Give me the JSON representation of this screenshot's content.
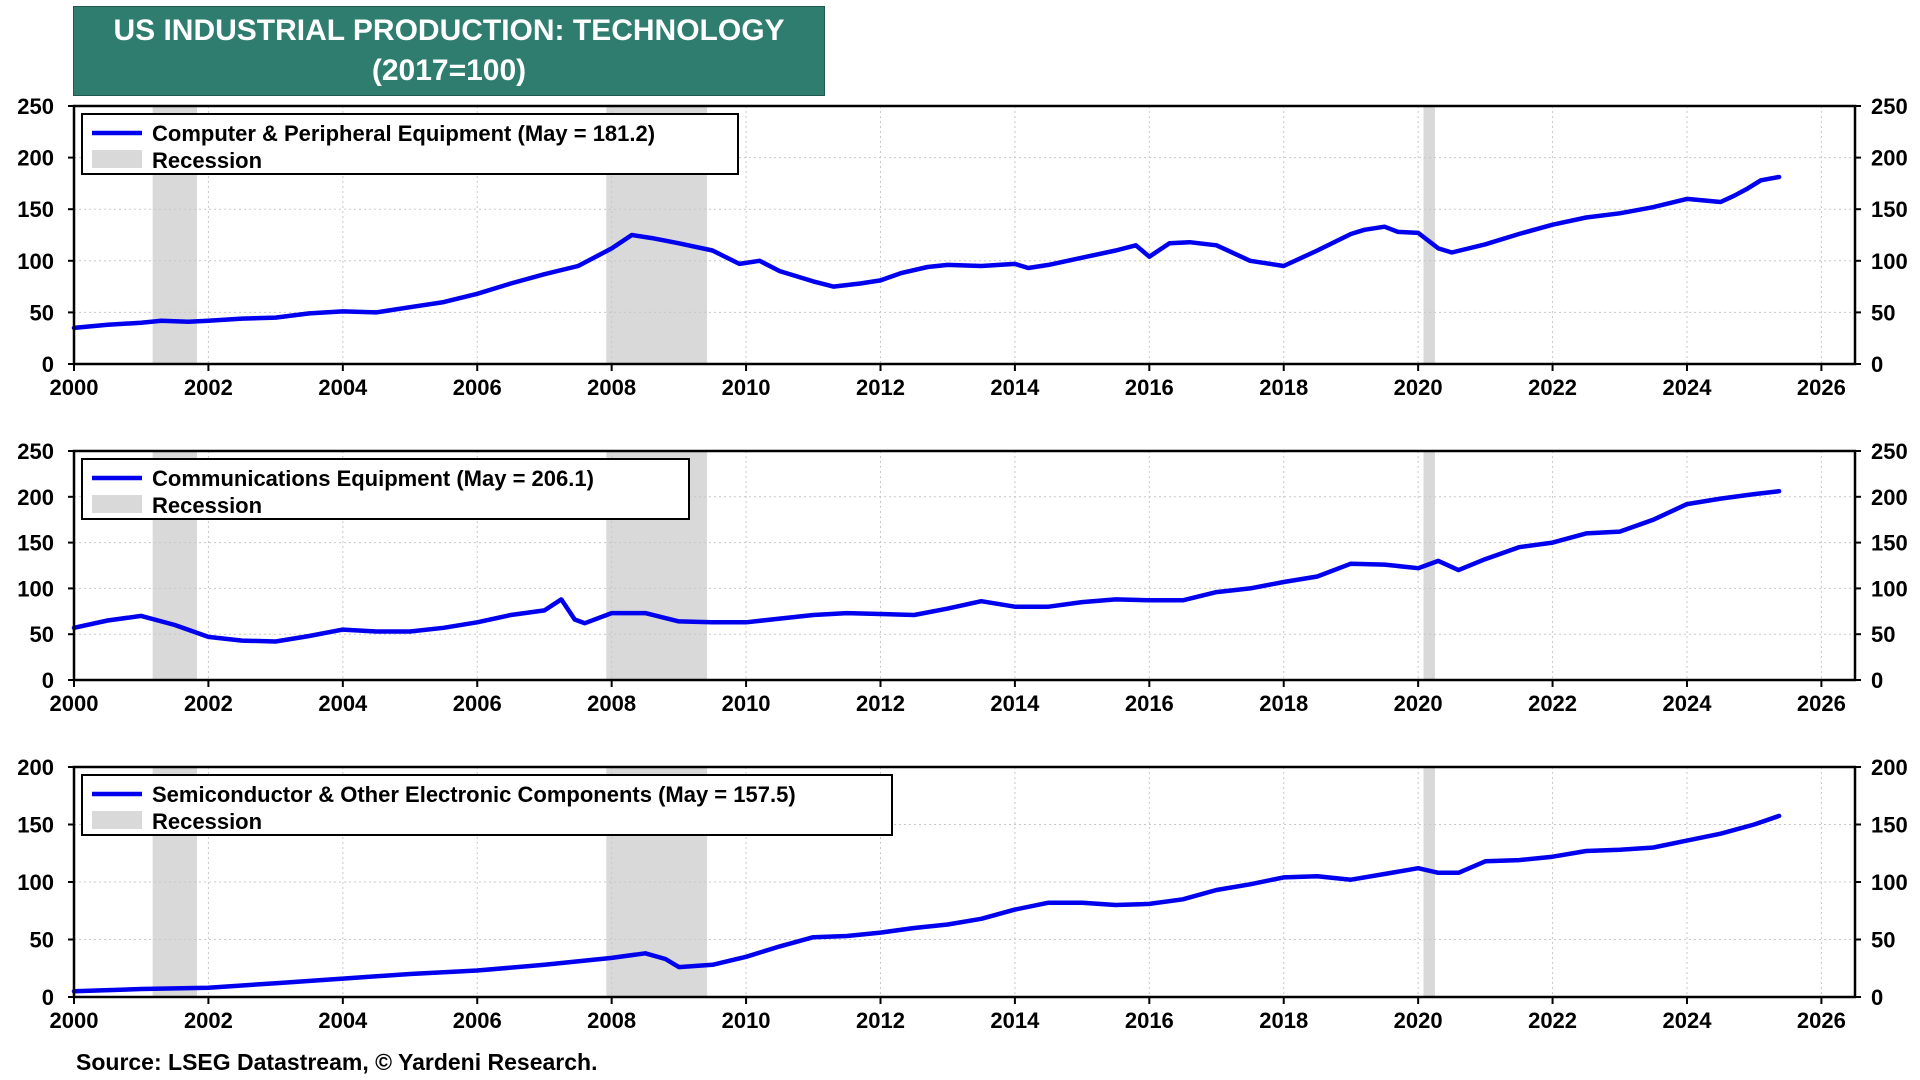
{
  "title": "US INDUSTRIAL PRODUCTION: TECHNOLOGY",
  "subtitle": "(2017=100)",
  "source": "Source: LSEG Datastream, © Yardeni Research.",
  "colors": {
    "line": "#0000ee",
    "recession": "#d9d9d9",
    "title_bg": "#2e7d6e"
  },
  "chart_data": [
    {
      "type": "line",
      "series": [
        {
          "name": "Computer & Peripheral Equipment (May = 181.2)",
          "color": "#0000ee"
        }
      ],
      "legend": {
        "placement": "top-left",
        "items": [
          "Computer & Peripheral Equipment (May = 181.2)",
          "Recession"
        ]
      },
      "xlim": [
        2000,
        2026.5
      ],
      "ylim": [
        0,
        250
      ],
      "x_ticks": [
        "2000",
        "2002",
        "2004",
        "2006",
        "2008",
        "2010",
        "2012",
        "2014",
        "2016",
        "2018",
        "2020",
        "2022",
        "2024",
        "2026"
      ],
      "y_ticks": [
        "0",
        "50",
        "100",
        "150",
        "200",
        "250"
      ],
      "recessions": [
        [
          2001.17,
          2001.83
        ],
        [
          2007.92,
          2009.42
        ],
        [
          2020.08,
          2020.25
        ]
      ],
      "grid": true,
      "x": [
        2000,
        2000.5,
        2001,
        2001.3,
        2001.7,
        2002,
        2002.5,
        2003,
        2003.5,
        2004,
        2004.5,
        2005,
        2005.5,
        2006,
        2006.5,
        2007,
        2007.5,
        2008,
        2008.3,
        2008.6,
        2009,
        2009.5,
        2009.9,
        2010.2,
        2010.5,
        2011,
        2011.3,
        2011.7,
        2012,
        2012.3,
        2012.7,
        2013,
        2013.5,
        2014,
        2014.2,
        2014.5,
        2015,
        2015.5,
        2015.8,
        2016,
        2016.3,
        2016.6,
        2017,
        2017.5,
        2018,
        2018.5,
        2019,
        2019.2,
        2019.5,
        2019.7,
        2020,
        2020.3,
        2020.5,
        2021,
        2021.5,
        2022,
        2022.5,
        2023,
        2023.5,
        2024,
        2024.5,
        2024.7,
        2024.9,
        2025.1,
        2025.37
      ],
      "y": [
        35,
        38,
        40,
        42,
        41,
        42,
        44,
        45,
        49,
        51,
        50,
        55,
        60,
        68,
        78,
        87,
        95,
        112,
        125,
        122,
        117,
        110,
        97,
        100,
        90,
        80,
        75,
        78,
        81,
        88,
        94,
        96,
        95,
        97,
        93,
        96,
        103,
        110,
        115,
        104,
        117,
        118,
        115,
        100,
        95,
        110,
        126,
        130,
        133,
        128,
        127,
        112,
        108,
        116,
        126,
        135,
        142,
        146,
        152,
        160,
        157,
        163,
        170,
        178,
        181.2
      ]
    },
    {
      "type": "line",
      "series": [
        {
          "name": "Communications Equipment (May = 206.1)",
          "color": "#0000ee"
        }
      ],
      "legend": {
        "placement": "top-left",
        "items": [
          "Communications Equipment (May = 206.1)",
          "Recession"
        ]
      },
      "xlim": [
        2000,
        2026.5
      ],
      "ylim": [
        0,
        250
      ],
      "x_ticks": [
        "2000",
        "2002",
        "2004",
        "2006",
        "2008",
        "2010",
        "2012",
        "2014",
        "2016",
        "2018",
        "2020",
        "2022",
        "2024",
        "2026"
      ],
      "y_ticks": [
        "0",
        "50",
        "100",
        "150",
        "200",
        "250"
      ],
      "recessions": [
        [
          2001.17,
          2001.83
        ],
        [
          2007.92,
          2009.42
        ],
        [
          2020.08,
          2020.25
        ]
      ],
      "grid": true,
      "x": [
        2000,
        2000.5,
        2001,
        2001.5,
        2002,
        2002.5,
        2003,
        2003.5,
        2004,
        2004.5,
        2005,
        2005.5,
        2006,
        2006.5,
        2007,
        2007.25,
        2007.45,
        2007.6,
        2008,
        2008.5,
        2009,
        2009.5,
        2010,
        2010.5,
        2011,
        2011.5,
        2012,
        2012.5,
        2013,
        2013.5,
        2014,
        2014.5,
        2015,
        2015.5,
        2016,
        2016.5,
        2017,
        2017.5,
        2018,
        2018.5,
        2019,
        2019.5,
        2020,
        2020.3,
        2020.6,
        2021,
        2021.5,
        2022,
        2022.5,
        2023,
        2023.5,
        2024,
        2024.5,
        2025,
        2025.37
      ],
      "y": [
        57,
        65,
        70,
        60,
        47,
        43,
        42,
        48,
        55,
        53,
        53,
        57,
        63,
        71,
        76,
        88,
        66,
        62,
        73,
        73,
        64,
        63,
        63,
        67,
        71,
        73,
        72,
        71,
        78,
        86,
        80,
        80,
        85,
        88,
        87,
        87,
        96,
        100,
        107,
        113,
        127,
        126,
        122,
        130,
        120,
        132,
        145,
        150,
        160,
        162,
        175,
        192,
        198,
        203,
        206.1
      ]
    },
    {
      "type": "line",
      "series": [
        {
          "name": "Semiconductor & Other Electronic Components (May = 157.5)",
          "color": "#0000ee"
        }
      ],
      "legend": {
        "placement": "top-left",
        "items": [
          "Semiconductor & Other Electronic Components (May = 157.5)",
          "Recession"
        ]
      },
      "xlim": [
        2000,
        2026.5
      ],
      "ylim": [
        0,
        200
      ],
      "x_ticks": [
        "2000",
        "2002",
        "2004",
        "2006",
        "2008",
        "2010",
        "2012",
        "2014",
        "2016",
        "2018",
        "2020",
        "2022",
        "2024",
        "2026"
      ],
      "y_ticks": [
        "0",
        "50",
        "100",
        "150",
        "200"
      ],
      "recessions": [
        [
          2001.17,
          2001.83
        ],
        [
          2007.92,
          2009.42
        ],
        [
          2020.08,
          2020.25
        ]
      ],
      "grid": true,
      "x": [
        2000,
        2001,
        2002,
        2003,
        2004,
        2005,
        2006,
        2007,
        2008,
        2008.5,
        2008.8,
        2009,
        2009.5,
        2010,
        2010.5,
        2011,
        2011.5,
        2012,
        2012.5,
        2013,
        2013.5,
        2014,
        2014.5,
        2015,
        2015.5,
        2016,
        2016.5,
        2017,
        2017.5,
        2018,
        2018.5,
        2019,
        2019.5,
        2020,
        2020.3,
        2020.6,
        2021,
        2021.5,
        2022,
        2022.5,
        2023,
        2023.5,
        2024,
        2024.5,
        2025,
        2025.37
      ],
      "y": [
        5,
        7,
        8,
        12,
        16,
        20,
        23,
        28,
        34,
        38,
        33,
        26,
        28,
        35,
        44,
        52,
        53,
        56,
        60,
        63,
        68,
        76,
        82,
        82,
        80,
        81,
        85,
        93,
        98,
        104,
        105,
        102,
        107,
        112,
        108,
        108,
        118,
        119,
        122,
        127,
        128,
        130,
        136,
        142,
        150,
        157.5
      ]
    }
  ]
}
